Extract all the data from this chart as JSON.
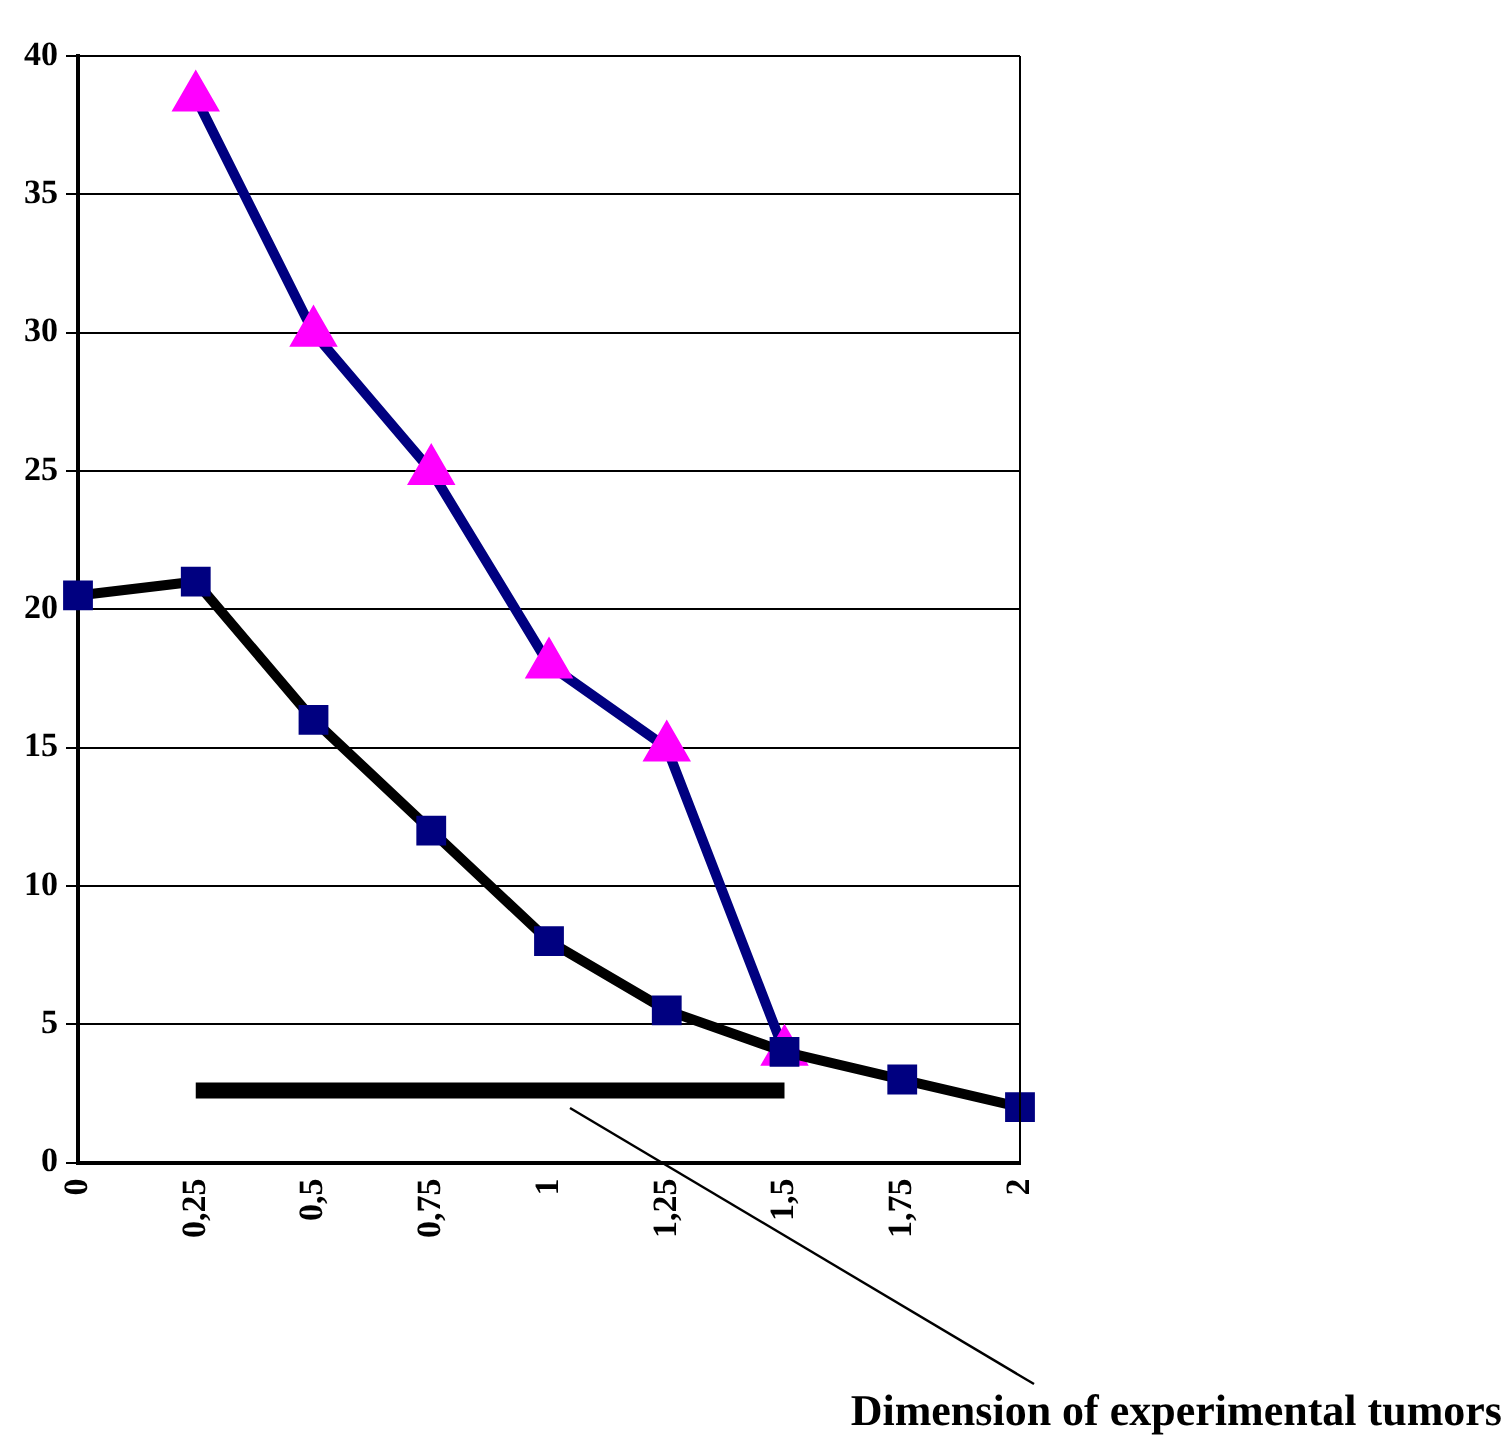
{
  "chart_data": {
    "type": "line",
    "xlabel": "Dimension of experimental tumors",
    "categories": [
      "0",
      "0,25",
      "0,5",
      "0,75",
      "1",
      "1,25",
      "1,5",
      "1,75",
      "2"
    ],
    "series": [
      {
        "color": "#000000",
        "marker": "square",
        "values": [
          20.5,
          21,
          16,
          12,
          8,
          5.5,
          4,
          3,
          2
        ]
      },
      {
        "color": "#000080",
        "marker": "triangle",
        "values": [
          null,
          38.5,
          30,
          25,
          18,
          15,
          4,
          null,
          null
        ]
      },
      {
        "color": "#000000",
        "marker": "none",
        "values": [
          null,
          2.6,
          2.6,
          2.6,
          2.6,
          2.6,
          2.6,
          null,
          null
        ]
      }
    ],
    "ylim": [
      0,
      40
    ],
    "yticks": [
      0,
      5,
      10,
      15,
      20,
      25,
      30,
      35,
      40
    ],
    "grid": "y",
    "legend": false
  }
}
